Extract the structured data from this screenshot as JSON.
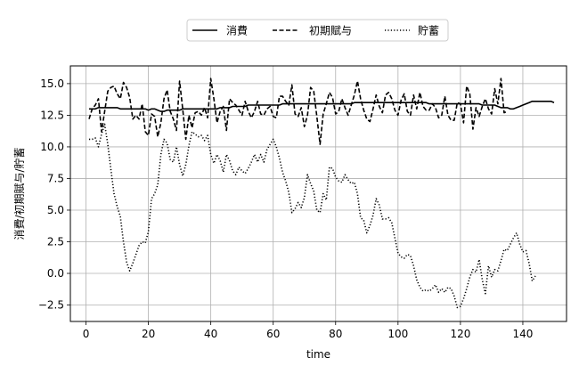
{
  "chart_data": {
    "type": "line",
    "title": "",
    "xlabel": "time",
    "ylabel": "消費/初期賦与/貯蓄",
    "xlim": [
      -5,
      154
    ],
    "ylim": [
      -3.8,
      16.4
    ],
    "xticks": [
      0,
      20,
      40,
      60,
      80,
      100,
      120,
      140
    ],
    "yticks": [
      -2.5,
      0.0,
      2.5,
      5.0,
      7.5,
      10.0,
      12.5,
      15.0
    ],
    "xtick_labels": [
      "0",
      "20",
      "40",
      "60",
      "80",
      "100",
      "120",
      "140"
    ],
    "ytick_labels": [
      "−2.5",
      "0.0",
      "2.5",
      "5.0",
      "7.5",
      "10.0",
      "12.5",
      "15.0"
    ],
    "grid": true,
    "legend_position": "top-center, outside",
    "x_start": 1,
    "series": [
      {
        "name": "消費",
        "style": "solid",
        "color": "#000000",
        "values": [
          13.0,
          13.0,
          13.0,
          13.1,
          13.1,
          13.1,
          13.1,
          13.1,
          13.1,
          13.1,
          13.0,
          13.0,
          13.0,
          13.0,
          13.0,
          13.0,
          13.0,
          13.0,
          13.0,
          12.9,
          13.0,
          13.0,
          12.9,
          12.8,
          12.8,
          12.9,
          12.9,
          12.9,
          12.9,
          12.9,
          13.0,
          13.0,
          13.0,
          13.0,
          13.0,
          13.0,
          13.0,
          13.0,
          13.0,
          13.0,
          13.0,
          13.0,
          13.1,
          13.1,
          13.1,
          13.1,
          13.2,
          13.2,
          13.2,
          13.2,
          13.2,
          13.3,
          13.3,
          13.3,
          13.3,
          13.3,
          13.3,
          13.3,
          13.3,
          13.3,
          13.3,
          13.3,
          13.4,
          13.4,
          13.4,
          13.4,
          13.4,
          13.4,
          13.4,
          13.4,
          13.4,
          13.4,
          13.4,
          13.4,
          13.4,
          13.4,
          13.4,
          13.4,
          13.4,
          13.4,
          13.4,
          13.4,
          13.4,
          13.4,
          13.4,
          13.5,
          13.5,
          13.5,
          13.5,
          13.5,
          13.5,
          13.5,
          13.5,
          13.5,
          13.5,
          13.5,
          13.5,
          13.5,
          13.5,
          13.5,
          13.5,
          13.5,
          13.5,
          13.5,
          13.5,
          13.5,
          13.5,
          13.5,
          13.5,
          13.4,
          13.4,
          13.4,
          13.4,
          13.4,
          13.4,
          13.4,
          13.4,
          13.4,
          13.4,
          13.4,
          13.4,
          13.4,
          13.4,
          13.4,
          13.4,
          13.4,
          13.3,
          13.3,
          13.3,
          13.3,
          13.3,
          13.2,
          13.1,
          13.1,
          13.1,
          13.0,
          13.0,
          13.1,
          13.2,
          13.3,
          13.4,
          13.5,
          13.6,
          13.6,
          13.6,
          13.6,
          13.6,
          13.6,
          13.6,
          13.5
        ]
      },
      {
        "name": "初期賦与",
        "style": "dashed",
        "color": "#000000",
        "values": [
          12.2,
          13.0,
          13.3,
          13.8,
          11.2,
          12.8,
          14.4,
          14.7,
          14.8,
          14.2,
          13.8,
          15.1,
          14.7,
          13.9,
          12.2,
          12.5,
          12.2,
          13.4,
          11.2,
          10.9,
          12.6,
          12.4,
          10.8,
          11.9,
          13.8,
          14.5,
          12.8,
          12.2,
          11.3,
          15.2,
          13.0,
          10.6,
          12.5,
          11.5,
          12.7,
          12.8,
          12.5,
          13.1,
          12.3,
          15.4,
          13.8,
          11.9,
          12.8,
          13.2,
          11.3,
          13.8,
          13.5,
          13.3,
          12.9,
          12.5,
          13.6,
          12.8,
          12.3,
          12.8,
          13.6,
          12.6,
          12.5,
          13.0,
          13.2,
          12.4,
          12.3,
          14.0,
          14.0,
          13.6,
          13.3,
          14.9,
          12.6,
          12.4,
          13.1,
          11.6,
          12.5,
          14.7,
          14.4,
          12.4,
          10.2,
          12.6,
          13.4,
          14.3,
          13.9,
          12.6,
          12.8,
          13.8,
          13.1,
          12.5,
          13.3,
          14.1,
          15.2,
          13.8,
          12.9,
          12.2,
          12.0,
          13.0,
          14.1,
          13.2,
          12.7,
          14.1,
          14.3,
          13.8,
          12.9,
          12.5,
          13.7,
          14.2,
          12.8,
          12.5,
          14.1,
          13.0,
          14.3,
          13.2,
          12.9,
          12.9,
          13.4,
          13.1,
          12.3,
          12.5,
          14.0,
          12.5,
          12.1,
          12.1,
          13.5,
          13.4,
          11.9,
          14.8,
          14.2,
          11.4,
          13.1,
          12.4,
          13.2,
          13.8,
          13.0,
          12.6,
          14.6,
          13.4,
          15.4,
          12.7,
          12.8
        ]
      },
      {
        "name": "貯蓄",
        "style": "dotted",
        "color": "#000000",
        "values": [
          10.6,
          10.6,
          10.7,
          10.0,
          11.0,
          11.8,
          10.2,
          8.2,
          6.3,
          5.3,
          4.5,
          2.5,
          0.9,
          0.2,
          0.8,
          1.5,
          2.2,
          2.5,
          2.4,
          3.3,
          5.9,
          6.3,
          7.0,
          9.4,
          10.6,
          10.3,
          9.0,
          8.8,
          10.0,
          8.6,
          7.7,
          8.6,
          10.1,
          11.2,
          11.0,
          10.8,
          10.9,
          10.5,
          10.9,
          9.4,
          8.7,
          9.4,
          8.9,
          8.0,
          9.4,
          8.9,
          8.1,
          7.8,
          8.4,
          8.1,
          7.9,
          8.3,
          8.8,
          9.4,
          8.8,
          9.4,
          8.8,
          9.8,
          10.2,
          10.6,
          10.0,
          9.1,
          8.0,
          7.3,
          6.4,
          4.8,
          5.1,
          5.6,
          5.2,
          6.0,
          7.8,
          7.1,
          6.5,
          5.0,
          4.8,
          6.3,
          5.8,
          8.4,
          8.3,
          7.6,
          7.3,
          7.2,
          7.8,
          7.4,
          7.1,
          7.2,
          6.3,
          4.4,
          4.2,
          3.2,
          3.8,
          4.6,
          5.9,
          5.4,
          4.3,
          4.3,
          4.4,
          4.0,
          2.8,
          1.6,
          1.3,
          1.2,
          1.5,
          1.4,
          0.6,
          -0.5,
          -1.1,
          -1.4,
          -1.3,
          -1.4,
          -1.2,
          -0.9,
          -1.5,
          -1.2,
          -1.5,
          -1.1,
          -1.2,
          -1.8,
          -2.7,
          -2.6,
          -2.0,
          -1.2,
          -0.3,
          0.3,
          0.1,
          1.1,
          -0.5,
          -1.6,
          0.6,
          -0.3,
          0.3,
          0.2,
          1.0,
          1.9,
          1.8,
          2.3,
          2.8,
          3.2,
          2.3,
          1.7,
          1.8,
          0.8,
          -0.6,
          -0.2
        ]
      }
    ]
  }
}
